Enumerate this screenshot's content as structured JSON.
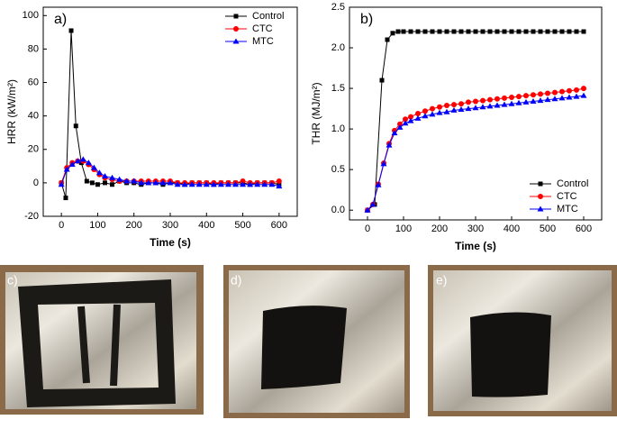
{
  "chart_data": [
    {
      "type": "line",
      "panel_label": "a)",
      "xlabel": "Time (s)",
      "ylabel": "HRR (kW/m²)",
      "xlim": [
        -50,
        650
      ],
      "xticks": [
        0,
        100,
        200,
        300,
        400,
        500,
        600
      ],
      "ylim": [
        -20,
        105
      ],
      "yticks": [
        -20,
        0,
        20,
        40,
        60,
        80,
        100
      ],
      "legend": "upper right",
      "series": [
        {
          "name": "Control",
          "color": "#000000",
          "marker": "square",
          "x": [
            0,
            12,
            27,
            40,
            55,
            70,
            85,
            100,
            120,
            140,
            160,
            180,
            200,
            220,
            240,
            260,
            280,
            300,
            320,
            340,
            360,
            380,
            400,
            420,
            440,
            460,
            480,
            500,
            520,
            540,
            560,
            580,
            600
          ],
          "values": [
            0,
            -9,
            91,
            34,
            12,
            1,
            0,
            -1,
            0,
            -1,
            1,
            0,
            0,
            -1,
            0,
            0,
            -1,
            0,
            0,
            -1,
            0,
            0,
            0,
            -1,
            0,
            0,
            0,
            0,
            -1,
            0,
            0,
            0,
            -1
          ]
        },
        {
          "name": "CTC",
          "color": "#ff0000",
          "marker": "circle",
          "x": [
            0,
            15,
            30,
            45,
            60,
            75,
            90,
            105,
            120,
            140,
            160,
            180,
            200,
            220,
            240,
            260,
            280,
            300,
            320,
            340,
            360,
            380,
            400,
            420,
            440,
            460,
            480,
            500,
            520,
            540,
            560,
            580,
            600
          ],
          "values": [
            0,
            9,
            12,
            13,
            13,
            11,
            8,
            5,
            3,
            2,
            1,
            1,
            1,
            1,
            1,
            1,
            1,
            1,
            0,
            0,
            0,
            0,
            0,
            0,
            0,
            0,
            0,
            1,
            0,
            0,
            0,
            0,
            1
          ]
        },
        {
          "name": "MTC",
          "color": "#0000ff",
          "marker": "triangle",
          "x": [
            0,
            15,
            30,
            45,
            60,
            75,
            90,
            105,
            120,
            140,
            160,
            180,
            200,
            220,
            240,
            260,
            280,
            300,
            320,
            340,
            360,
            380,
            400,
            420,
            440,
            460,
            480,
            500,
            520,
            540,
            560,
            580,
            600
          ],
          "values": [
            -1,
            8,
            11,
            13,
            14,
            12,
            9,
            6,
            4,
            3,
            2,
            1,
            1,
            0,
            0,
            0,
            0,
            0,
            -1,
            -1,
            -1,
            -1,
            -1,
            -1,
            -1,
            -1,
            -1,
            -1,
            -1,
            -1,
            -1,
            -1,
            -2
          ]
        }
      ]
    },
    {
      "type": "line",
      "panel_label": "b)",
      "xlabel": "Time (s)",
      "ylabel": "THR (MJ/m²)",
      "xlim": [
        -50,
        650
      ],
      "xticks": [
        0,
        100,
        200,
        300,
        400,
        500,
        600
      ],
      "ylim": [
        -0.12,
        2.5
      ],
      "yticks": [
        {
          "value": 0,
          "label": "0.0"
        },
        0.5,
        {
          "value": 1,
          "label": "1.0"
        },
        1.5,
        {
          "value": 2,
          "label": "2.0"
        },
        2.5
      ],
      "legend": "lower right",
      "series": [
        {
          "name": "Control",
          "color": "#000000",
          "marker": "square",
          "x": [
            0,
            20,
            40,
            55,
            70,
            85,
            100,
            120,
            140,
            160,
            180,
            200,
            220,
            240,
            260,
            280,
            300,
            320,
            340,
            360,
            380,
            400,
            420,
            440,
            460,
            480,
            500,
            520,
            540,
            560,
            580,
            600
          ],
          "values": [
            0,
            0.07,
            1.6,
            2.1,
            2.18,
            2.2,
            2.2,
            2.2,
            2.2,
            2.2,
            2.2,
            2.2,
            2.2,
            2.2,
            2.2,
            2.2,
            2.2,
            2.2,
            2.2,
            2.2,
            2.2,
            2.2,
            2.2,
            2.2,
            2.2,
            2.2,
            2.2,
            2.2,
            2.2,
            2.2,
            2.2,
            2.2
          ]
        },
        {
          "name": "CTC",
          "color": "#ff0000",
          "marker": "circle",
          "x": [
            0,
            15,
            30,
            45,
            60,
            75,
            90,
            105,
            120,
            140,
            160,
            180,
            200,
            220,
            240,
            260,
            280,
            300,
            320,
            340,
            360,
            380,
            400,
            420,
            440,
            460,
            480,
            500,
            520,
            540,
            560,
            580,
            600
          ],
          "values": [
            0,
            0.07,
            0.32,
            0.58,
            0.82,
            0.98,
            1.06,
            1.12,
            1.15,
            1.19,
            1.22,
            1.25,
            1.27,
            1.29,
            1.3,
            1.31,
            1.33,
            1.34,
            1.35,
            1.36,
            1.37,
            1.38,
            1.39,
            1.4,
            1.41,
            1.42,
            1.43,
            1.44,
            1.45,
            1.46,
            1.47,
            1.48,
            1.5
          ]
        },
        {
          "name": "MTC",
          "color": "#0000ff",
          "marker": "triangle",
          "x": [
            0,
            15,
            30,
            45,
            60,
            75,
            90,
            105,
            120,
            140,
            160,
            180,
            200,
            220,
            240,
            260,
            280,
            300,
            320,
            340,
            360,
            380,
            400,
            420,
            440,
            460,
            480,
            500,
            520,
            540,
            560,
            580,
            600
          ],
          "values": [
            0,
            0.07,
            0.31,
            0.57,
            0.8,
            0.95,
            1.02,
            1.07,
            1.1,
            1.13,
            1.16,
            1.18,
            1.2,
            1.21,
            1.23,
            1.24,
            1.25,
            1.26,
            1.27,
            1.28,
            1.29,
            1.3,
            1.31,
            1.32,
            1.33,
            1.34,
            1.35,
            1.36,
            1.37,
            1.38,
            1.39,
            1.4,
            1.41
          ]
        }
      ]
    }
  ],
  "photos": [
    {
      "label": "c)"
    },
    {
      "label": "d)"
    },
    {
      "label": "e)"
    }
  ]
}
